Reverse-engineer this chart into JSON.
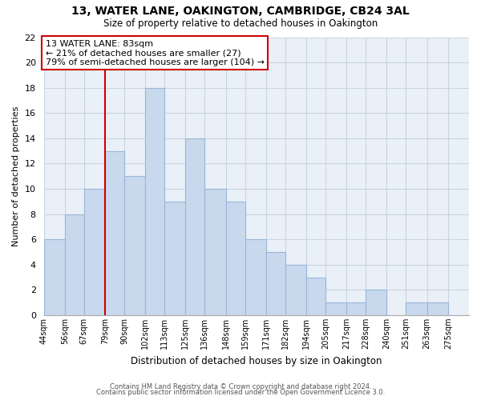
{
  "title": "13, WATER LANE, OAKINGTON, CAMBRIDGE, CB24 3AL",
  "subtitle": "Size of property relative to detached houses in Oakington",
  "xlabel": "Distribution of detached houses by size in Oakington",
  "ylabel": "Number of detached properties",
  "footer_line1": "Contains HM Land Registry data © Crown copyright and database right 2024.",
  "footer_line2": "Contains public sector information licensed under the Open Government Licence 3.0.",
  "bin_labels": [
    "44sqm",
    "56sqm",
    "67sqm",
    "79sqm",
    "90sqm",
    "102sqm",
    "113sqm",
    "125sqm",
    "136sqm",
    "148sqm",
    "159sqm",
    "171sqm",
    "182sqm",
    "194sqm",
    "205sqm",
    "217sqm",
    "228sqm",
    "240sqm",
    "251sqm",
    "263sqm",
    "275sqm"
  ],
  "bar_heights": [
    6,
    8,
    10,
    13,
    11,
    18,
    9,
    14,
    10,
    9,
    6,
    5,
    4,
    3,
    1,
    1,
    2,
    0,
    1,
    1,
    0
  ],
  "bar_color": "#c8d9ee",
  "bar_edge_color": "#9ab5d5",
  "grid_color": "#c8d4e3",
  "vline_color": "#cc0000",
  "annotation_text": "13 WATER LANE: 83sqm\n← 21% of detached houses are smaller (27)\n79% of semi-detached houses are larger (104) →",
  "annotation_box_color": "#ffffff",
  "annotation_box_edge": "#cc0000",
  "ylim": [
    0,
    22
  ],
  "yticks": [
    0,
    2,
    4,
    6,
    8,
    10,
    12,
    14,
    16,
    18,
    20,
    22
  ],
  "background_color": "#ffffff",
  "plot_bg_color": "#eaf0f8",
  "bin_edges_numeric": [
    44,
    56,
    67,
    79,
    90,
    102,
    113,
    125,
    136,
    148,
    159,
    171,
    182,
    194,
    205,
    217,
    228,
    240,
    251,
    263,
    275,
    287
  ],
  "vline_x_bin_index": 3
}
